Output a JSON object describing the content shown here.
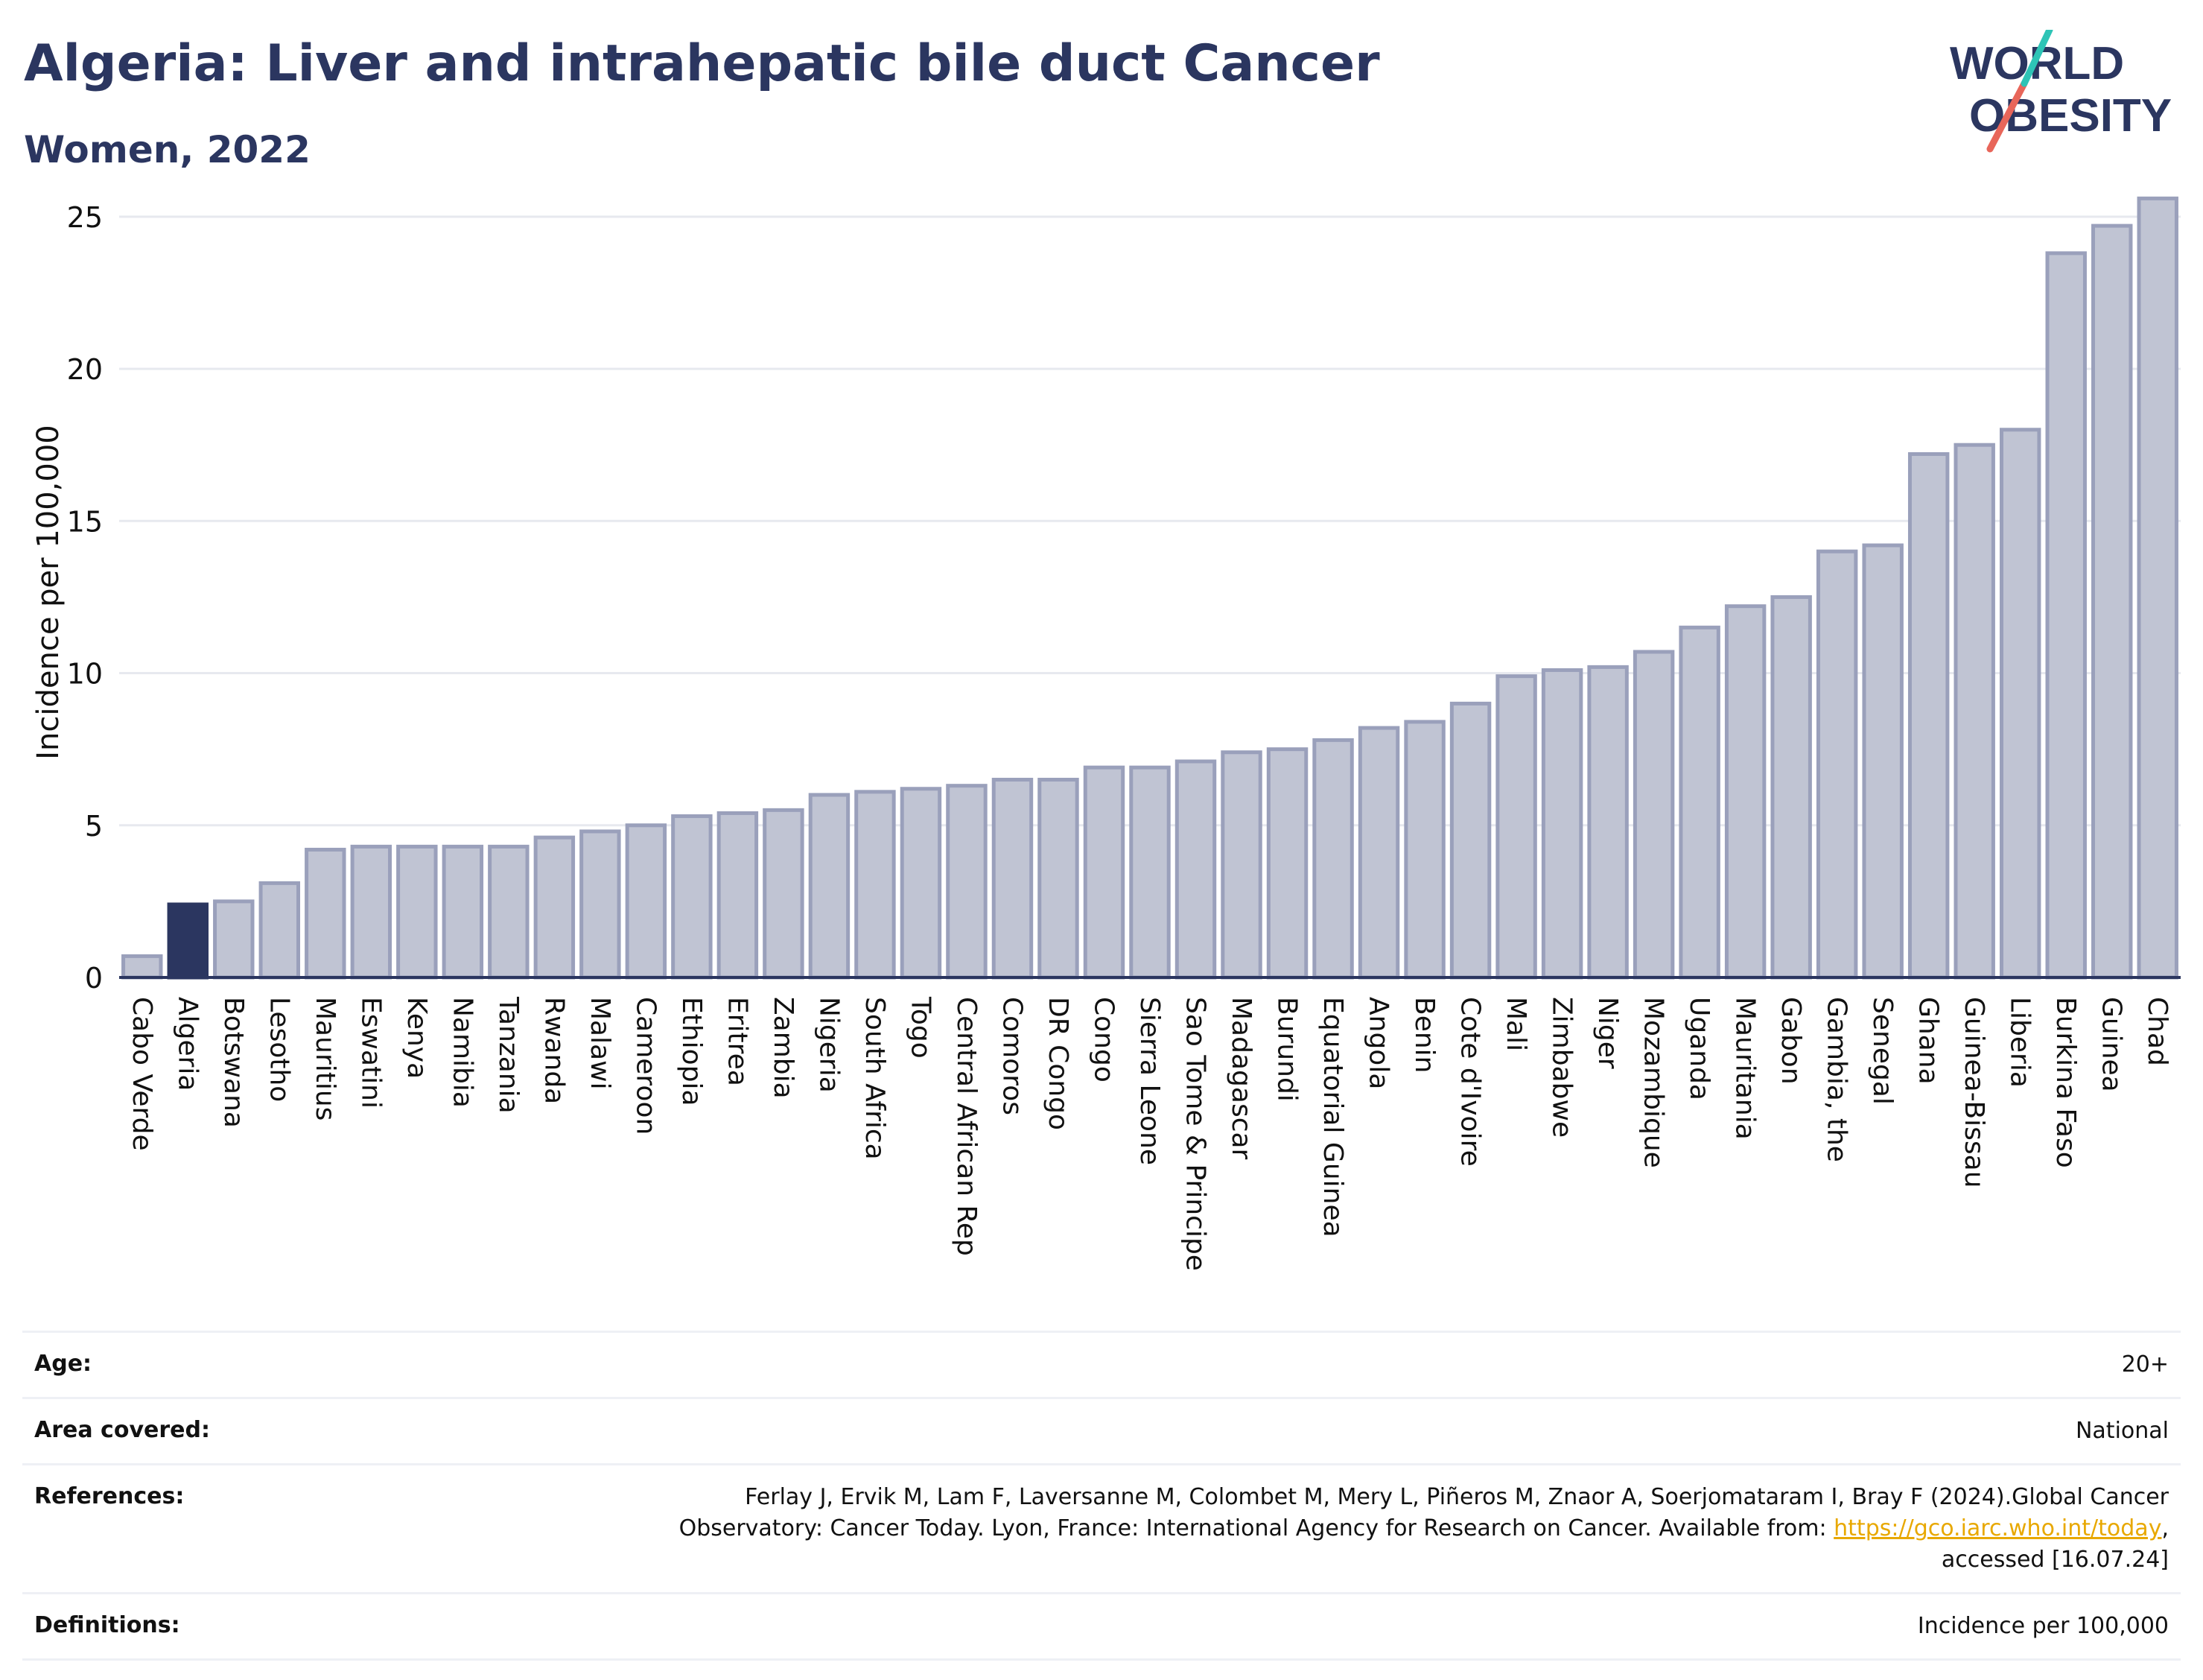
{
  "header": {
    "title": "Algeria: Liver and intrahepatic bile duct Cancer",
    "subtitle": "Women, 2022"
  },
  "logo": {
    "line1": "WORLD",
    "line2": "OBESITY",
    "colors": {
      "text": "#2b3660",
      "accent_teal": "#2ec4b6",
      "accent_red": "#e8665a"
    }
  },
  "chart_data": {
    "type": "bar",
    "title": "",
    "xlabel": "",
    "ylabel": "Incidence per 100,000",
    "ylim": [
      0,
      26
    ],
    "yticks": [
      0,
      5,
      10,
      15,
      20,
      25
    ],
    "grid": true,
    "highlight": "Algeria",
    "colors": {
      "bar": "#c0c4d3",
      "bar_stroke": "#9aa0bb",
      "highlight": "#2b3660",
      "grid": "#e7e9ef"
    },
    "categories": [
      "Cabo Verde",
      "Algeria",
      "Botswana",
      "Lesotho",
      "Mauritius",
      "Eswatini",
      "Kenya",
      "Namibia",
      "Tanzania",
      "Rwanda",
      "Malawi",
      "Cameroon",
      "Ethiopia",
      "Eritrea",
      "Zambia",
      "Nigeria",
      "South Africa",
      "Togo",
      "Central African Rep",
      "Comoros",
      "DR Congo",
      "Congo",
      "Sierra Leone",
      "Sao Tome & Principe",
      "Madagascar",
      "Burundi",
      "Equatorial Guinea",
      "Angola",
      "Benin",
      "Cote d'Ivoire",
      "Mali",
      "Zimbabwe",
      "Niger",
      "Mozambique",
      "Uganda",
      "Mauritania",
      "Gabon",
      "Gambia, the",
      "Senegal",
      "Ghana",
      "Guinea-Bissau",
      "Liberia",
      "Burkina Faso",
      "Guinea",
      "Chad"
    ],
    "values": [
      0.7,
      2.4,
      2.5,
      3.1,
      4.2,
      4.3,
      4.3,
      4.3,
      4.3,
      4.6,
      4.8,
      5.0,
      5.3,
      5.4,
      5.5,
      6.0,
      6.1,
      6.2,
      6.3,
      6.5,
      6.5,
      6.9,
      6.9,
      7.1,
      7.4,
      7.5,
      7.8,
      8.2,
      8.4,
      9.0,
      9.9,
      10.1,
      10.2,
      10.7,
      11.5,
      12.2,
      12.5,
      14.0,
      14.2,
      17.2,
      17.5,
      18.0,
      23.8,
      24.7,
      25.6
    ]
  },
  "meta": {
    "age_label": "Age:",
    "age_value": "20+",
    "area_label": "Area covered:",
    "area_value": "National",
    "references_label": "References:",
    "references_line1": "Ferlay J, Ervik M, Lam F, Laversanne M, Colombet M, Mery L, Piñeros M, Znaor A, Soerjomataram I, Bray F (2024).Global Cancer",
    "references_line2_pre": "Observatory: Cancer Today. Lyon, France: International Agency for Research on Cancer. Available from: ",
    "references_link": "https://gco.iarc.who.int/today",
    "references_line2_post": ",",
    "references_line3": "accessed [16.07.24]",
    "definitions_label": "Definitions:",
    "definitions_value": "Incidence per 100,000"
  }
}
